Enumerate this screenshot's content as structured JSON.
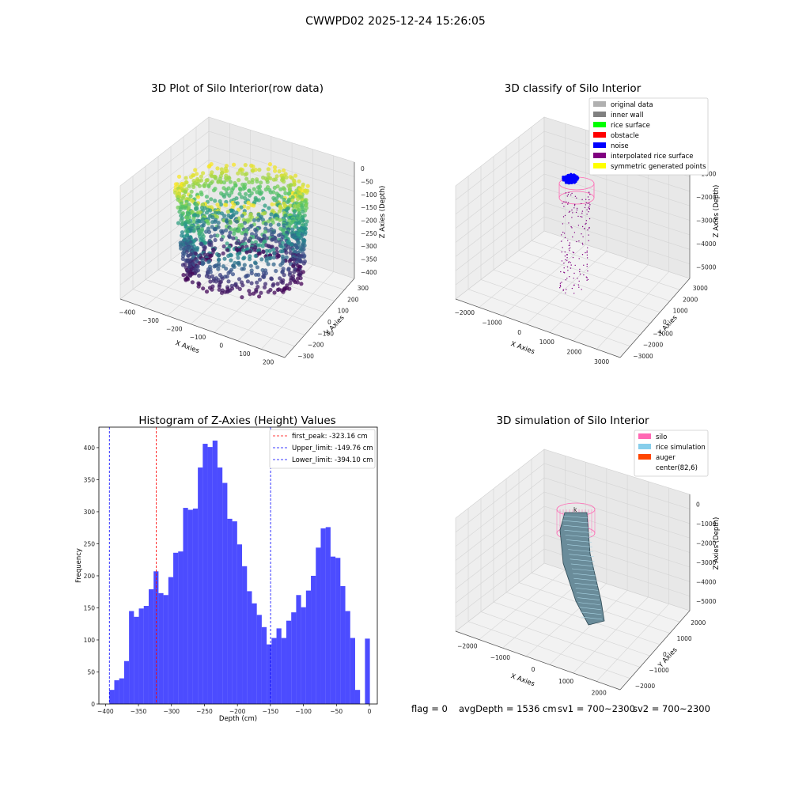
{
  "suptitle": "CWWPD02 2025-12-24 15:26:05",
  "status": {
    "flag": "flag = 0",
    "avg_depth": "avgDepth = 1536 cm",
    "sv1": "sv1 = 700~2300",
    "sv2": "sv2 = 700~2300"
  },
  "chart_data": [
    {
      "type": "scatter",
      "projection": "3d",
      "title": "3D Plot of Silo Interior(row data)",
      "xlabel": "X Axies",
      "ylabel": "Y Axies",
      "zlabel": "Z Axies (Depth)",
      "xticks": [
        "−400",
        "−300",
        "−200",
        "−100",
        "0",
        "100",
        "200"
      ],
      "yticks": [
        "−300",
        "−200",
        "−100",
        "0",
        "100",
        "200",
        "300"
      ],
      "zticks": [
        "0",
        "−50",
        "−100",
        "−150",
        "−200",
        "−250",
        "−300",
        "−350",
        "−400"
      ],
      "xlim": [
        -450,
        250
      ],
      "ylim": [
        -320,
        320
      ],
      "zlim": [
        -420,
        10
      ],
      "colormap": "viridis",
      "grid": true
    },
    {
      "type": "scatter",
      "projection": "3d",
      "title": "3D classify of Silo Interior",
      "xlabel": "X Axies",
      "ylabel": "Y Axies",
      "zlabel": "Z Axies (Depth)",
      "xticks": [
        "−2000",
        "−1000",
        "0",
        "1000",
        "2000",
        "3000"
      ],
      "yticks": [
        "−3000",
        "−2000",
        "−1000",
        "0",
        "1000",
        "2000",
        "3000"
      ],
      "zticks": [
        "−1000",
        "−2000",
        "−3000",
        "−4000",
        "−5000"
      ],
      "grid": true,
      "legend_position": "top-right",
      "legend": [
        {
          "label": "original data",
          "color": "#b0b0b0"
        },
        {
          "label": "inner wall",
          "color": "#808080"
        },
        {
          "label": "rice surface",
          "color": "#00ff00"
        },
        {
          "label": "obstacle",
          "color": "#ff0000"
        },
        {
          "label": "noise",
          "color": "#0000ff"
        },
        {
          "label": "interpolated rice surface",
          "color": "#800080"
        },
        {
          "label": "symmetric generated points",
          "color": "#ffff00"
        }
      ]
    },
    {
      "type": "bar",
      "title": "Histogram of Z-Axies (Height) Values",
      "xlabel": "Depth (cm)",
      "ylabel": "Frequency",
      "xlim": [
        -410,
        12
      ],
      "ylim": [
        0,
        432
      ],
      "xticks": [
        -400,
        -350,
        -300,
        -250,
        -200,
        -150,
        -100,
        -50,
        0
      ],
      "yticks": [
        0,
        50,
        100,
        150,
        200,
        250,
        300,
        350,
        400
      ],
      "bar_color": "#0000ff",
      "bar_alpha": 0.7,
      "bins": {
        "start": -394.1,
        "width": 7.45,
        "counts": [
          22,
          37,
          40,
          67,
          145,
          136,
          149,
          153,
          179,
          207,
          173,
          170,
          198,
          236,
          238,
          306,
          303,
          305,
          369,
          406,
          401,
          411,
          369,
          345,
          289,
          285,
          249,
          215,
          176,
          157,
          139,
          120,
          93,
          103,
          118,
          103,
          130,
          143,
          170,
          151,
          177,
          200,
          244,
          274,
          276,
          230,
          228,
          184,
          145,
          103,
          22,
          0,
          102
        ]
      },
      "vlines": [
        {
          "label": "first_peak: -323.16 cm",
          "x": -323.16,
          "color": "#ff0000"
        },
        {
          "label": "Upper_limit: -149.76 cm",
          "x": -149.76,
          "color": "#0000ff"
        },
        {
          "label": "Lower_limit: -394.10 cm",
          "x": -394.1,
          "color": "#0000ff"
        }
      ],
      "legend_position": "top-right"
    },
    {
      "type": "surface",
      "projection": "3d",
      "title": "3D simulation of Silo Interior",
      "xlabel": "X Axies",
      "ylabel": "Y Axies",
      "zlabel": "Z Axies (Depth)",
      "xticks": [
        "−2000",
        "−1000",
        "0",
        "1000",
        "2000"
      ],
      "yticks": [
        "−2000",
        "−1000",
        "0",
        "1000",
        "2000"
      ],
      "zticks": [
        "0",
        "−1000",
        "−2000",
        "−3000",
        "−4000",
        "−5000"
      ],
      "grid": true,
      "legend_position": "top-right",
      "legend": [
        {
          "label": "silo",
          "color": "#ff69b4"
        },
        {
          "label": "rice simulation",
          "color": "#87ceeb"
        },
        {
          "label": "auger",
          "color": "#ff4500"
        },
        {
          "label": "center(82,6)",
          "color": "#ffffff"
        }
      ]
    }
  ]
}
